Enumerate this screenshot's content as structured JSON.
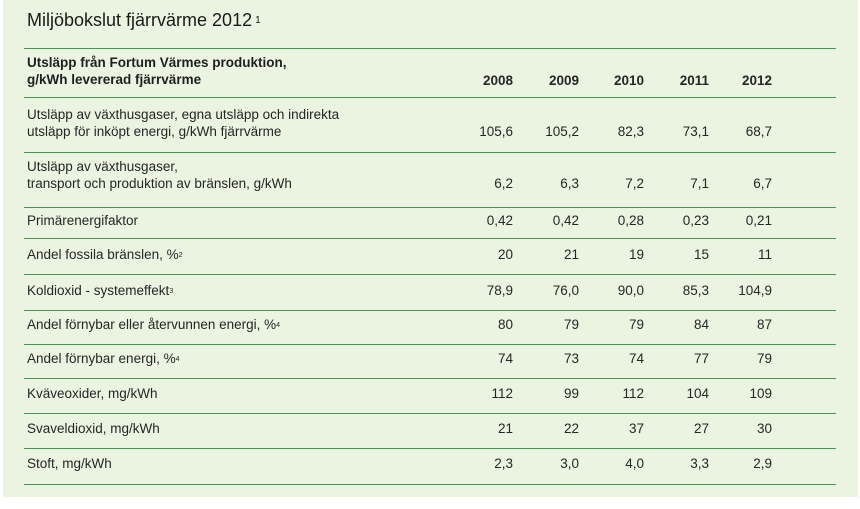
{
  "title": {
    "text": "Miljöbokslut fjärrvärme 2012",
    "note": "1"
  },
  "header": {
    "label_line1": "Utsläpp från Fortum Värmes produktion,",
    "label_line2": "g/kWh levererad fjärrvärme",
    "years": [
      "2008",
      "2009",
      "2010",
      "2011",
      "2012"
    ]
  },
  "rows": [
    {
      "label_line1": "Utsläpp av växthusgaser, egna utsläpp och indirekta",
      "label_line2": "utsläpp för inköpt energi, g/kWh fjärrvärme",
      "note": "",
      "values": [
        "105,6",
        "105,2",
        "82,3",
        "73,1",
        "68,7"
      ]
    },
    {
      "label_line1": "Utsläpp av växthusgaser,",
      "label_line2": "transport och produktion av bränslen, g/kWh",
      "note": "",
      "values": [
        "6,2",
        "6,3",
        "7,2",
        "7,1",
        "6,7"
      ]
    },
    {
      "label_line1": "Primärenergifaktor",
      "note": "",
      "values": [
        "0,42",
        "0,42",
        "0,28",
        "0,23",
        "0,21"
      ]
    },
    {
      "label_line1": "Andel fossila bränslen, %",
      "note": "2",
      "values": [
        "20",
        "21",
        "19",
        "15",
        "11"
      ]
    },
    {
      "label_line1": "Koldioxid - systemeffekt",
      "note": "3",
      "values": [
        "78,9",
        "76,0",
        "90,0",
        "85,3",
        "104,9"
      ]
    },
    {
      "label_line1": "Andel förnybar eller återvunnen energi, %",
      "note": "4",
      "values": [
        "80",
        "79",
        "79",
        "84",
        "87"
      ]
    },
    {
      "label_line1": "Andel förnybar energi, %",
      "note": "4",
      "values": [
        "74",
        "73",
        "74",
        "77",
        "79"
      ]
    },
    {
      "label_line1": "Kväveoxider, mg/kWh",
      "note": "",
      "values": [
        "112",
        "99",
        "112",
        "104",
        "109"
      ]
    },
    {
      "label_line1": "Svaveldioxid, mg/kWh",
      "note": "",
      "values": [
        "21",
        "22",
        "37",
        "27",
        "30"
      ]
    },
    {
      "label_line1": "Stoft, mg/kWh",
      "note": "",
      "values": [
        "2,3",
        "3,0",
        "4,0",
        "3,3",
        "2,9"
      ]
    }
  ],
  "colors": {
    "background": "#ebf4e1",
    "rule": "#4f9354",
    "text": "#262626"
  }
}
